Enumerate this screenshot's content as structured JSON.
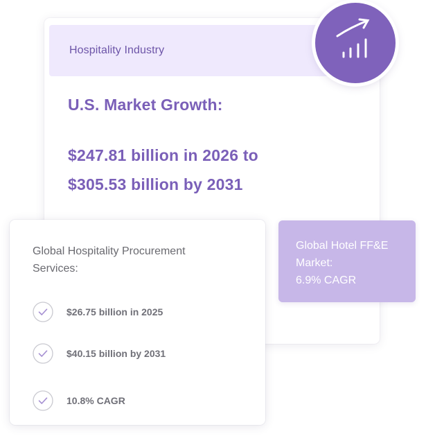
{
  "main_card": {
    "header": "Hospitality Industry",
    "heading": "U.S. Market Growth:",
    "figure_line1": "$247.81 billion in 2026 to",
    "figure_line2": "$305.53 billion by 2031"
  },
  "badge": {
    "icon": "growth-chart-icon"
  },
  "ffe_box": {
    "line1": "Global Hotel FF&E",
    "line2": "Market:",
    "line3": "6.9% CAGR"
  },
  "procurement_card": {
    "title_line1": "Global Hospitality Procurement",
    "title_line2": "Services:",
    "items": [
      {
        "label": "$26.75 billion in 2025",
        "icon": "check-circle-icon"
      },
      {
        "label": "$40.15 billion by 2031",
        "icon": "check-circle-icon"
      },
      {
        "label": "10.8% CAGR",
        "icon": "check-circle-icon"
      }
    ]
  },
  "colors": {
    "accent_purple": "#7f62bb",
    "heading_purple": "#7a5fb8",
    "header_bg": "#efe9fd",
    "box_purple": "#c7b7e8",
    "text_gray": "#6a6a70"
  }
}
